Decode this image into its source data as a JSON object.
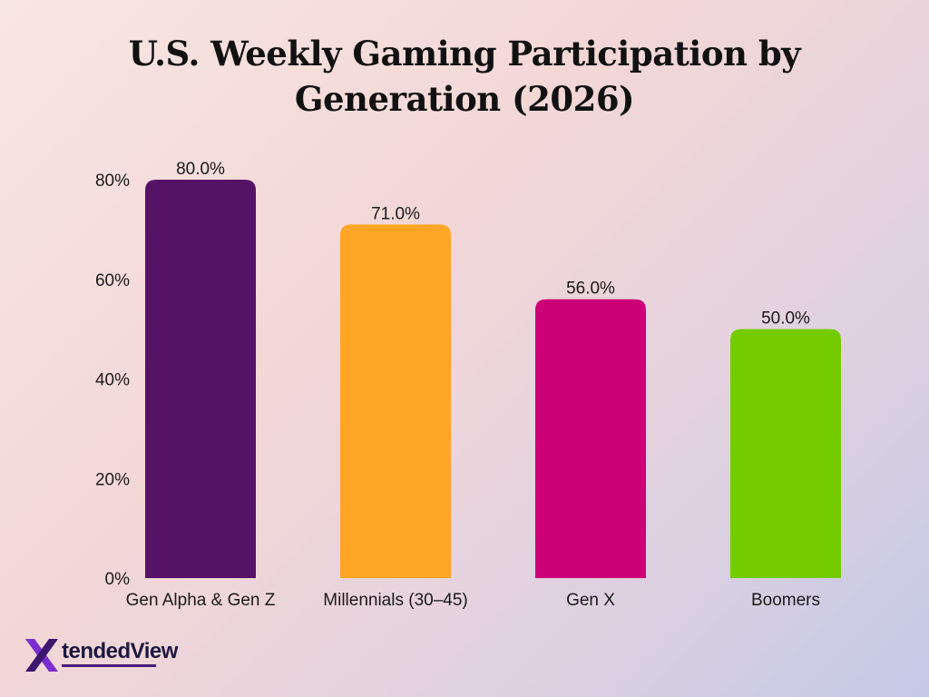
{
  "title": "U.S. Weekly Gaming Participation by Generation (2026)",
  "chart_data": {
    "type": "bar",
    "title": "U.S. Weekly Gaming Participation by Generation (2026)",
    "categories": [
      "Gen Alpha & Gen Z",
      "Millennials (30–45)",
      "Gen X",
      "Boomers"
    ],
    "values": [
      80.0,
      71.0,
      56.0,
      50.0
    ],
    "data_labels": [
      "80.0%",
      "71.0%",
      "56.0%",
      "50.0%"
    ],
    "colors": [
      "#561366",
      "#ffa627",
      "#cc0177",
      "#74cc00"
    ],
    "ylim": [
      0,
      80
    ],
    "yticks": [
      0,
      20,
      40,
      60,
      80
    ],
    "ytick_labels": [
      "0%",
      "20%",
      "40%",
      "60%",
      "80%"
    ],
    "xlabel": "",
    "ylabel": "",
    "grid": false,
    "legend": "none"
  },
  "logo": {
    "text": "tendedView",
    "icon": "x-logo-icon",
    "accent": "#7b2fd0"
  }
}
